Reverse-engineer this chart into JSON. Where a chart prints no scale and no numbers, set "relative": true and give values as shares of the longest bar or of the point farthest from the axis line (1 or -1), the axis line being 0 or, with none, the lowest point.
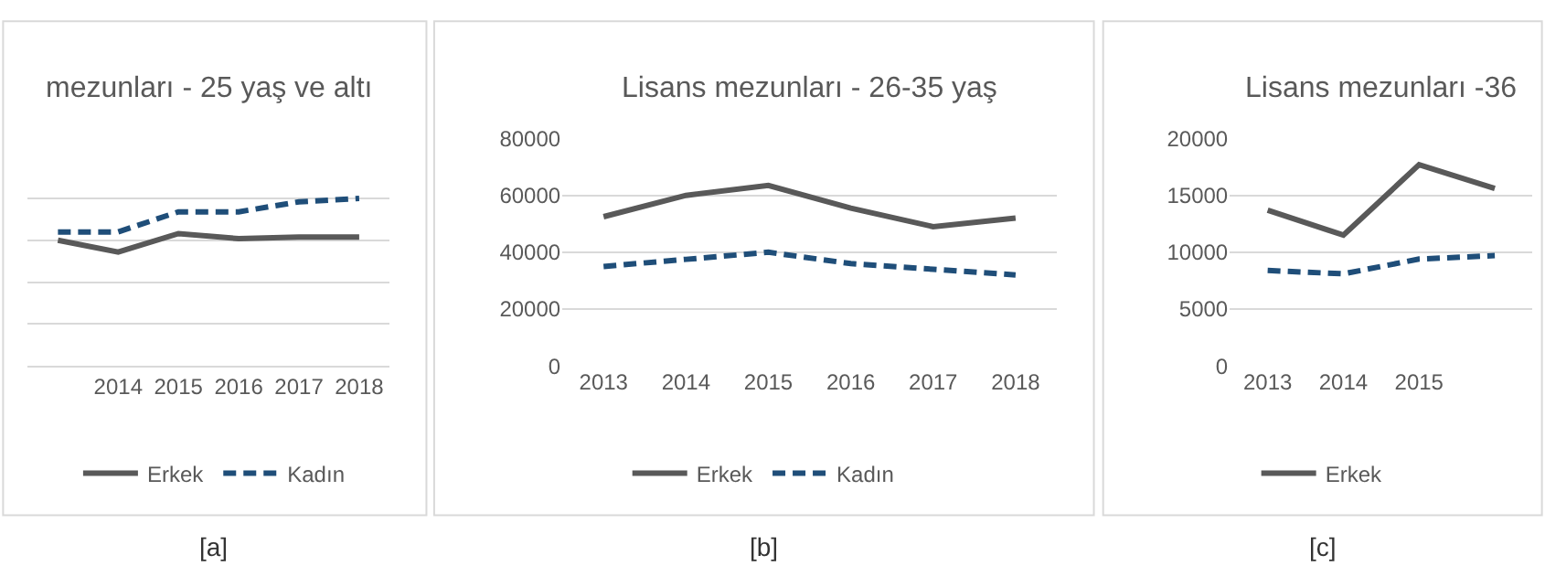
{
  "chart_data": [
    {
      "type": "line",
      "title": "mezunları - 25 yaş ve altı",
      "relative": true,
      "grid": "y",
      "legend": "bottom",
      "tick_labels": "x",
      "annotations": [
        "[a]"
      ],
      "categories": [
        null,
        "2014",
        "2015",
        "2016",
        "2017",
        "2018"
      ],
      "series": [
        {
          "name": "Erkek",
          "color": "#595959",
          "line_style": "solid",
          "values": [
            0.75,
            0.68,
            0.79,
            0.76,
            0.77,
            0.77
          ]
        },
        {
          "name": "Kadın",
          "color": "#1f4e79",
          "line_style": "dashed",
          "values": [
            0.8,
            0.8,
            0.92,
            0.92,
            0.98,
            1.0
          ]
        }
      ]
    },
    {
      "type": "line",
      "title": "Lisans mezunları - 26-35 yaş",
      "grid": "y",
      "legend": "bottom",
      "annotations": [
        "[b]"
      ],
      "categories": [
        "2013",
        "2014",
        "2015",
        "2016",
        "2017",
        "2018"
      ],
      "ylim": [
        0,
        80000
      ],
      "yticks": [
        0,
        20000,
        40000,
        60000,
        80000
      ],
      "series": [
        {
          "name": "Erkek",
          "color": "#595959",
          "line_style": "solid",
          "values": [
            52500,
            60000,
            63500,
            55500,
            49000,
            52000
          ]
        },
        {
          "name": "Kadın",
          "color": "#1f4e79",
          "line_style": "dashed",
          "values": [
            35000,
            37500,
            40000,
            36000,
            34000,
            32000
          ]
        }
      ]
    },
    {
      "type": "line",
      "title": "Lisans mezunları -36",
      "grid": "y",
      "legend": "bottom",
      "annotations": [
        "[c]"
      ],
      "categories": [
        "2013",
        "2014",
        "2015",
        null
      ],
      "ylim": [
        0,
        20000
      ],
      "yticks": [
        0,
        5000,
        10000,
        15000,
        20000
      ],
      "series": [
        {
          "name": "Erkek",
          "color": "#595959",
          "line_style": "solid",
          "values": [
            13700,
            11500,
            17700,
            15600
          ]
        },
        {
          "color": "#1f4e79",
          "line_style": "dashed",
          "values": [
            8400,
            8100,
            9400,
            9700
          ]
        }
      ]
    }
  ]
}
